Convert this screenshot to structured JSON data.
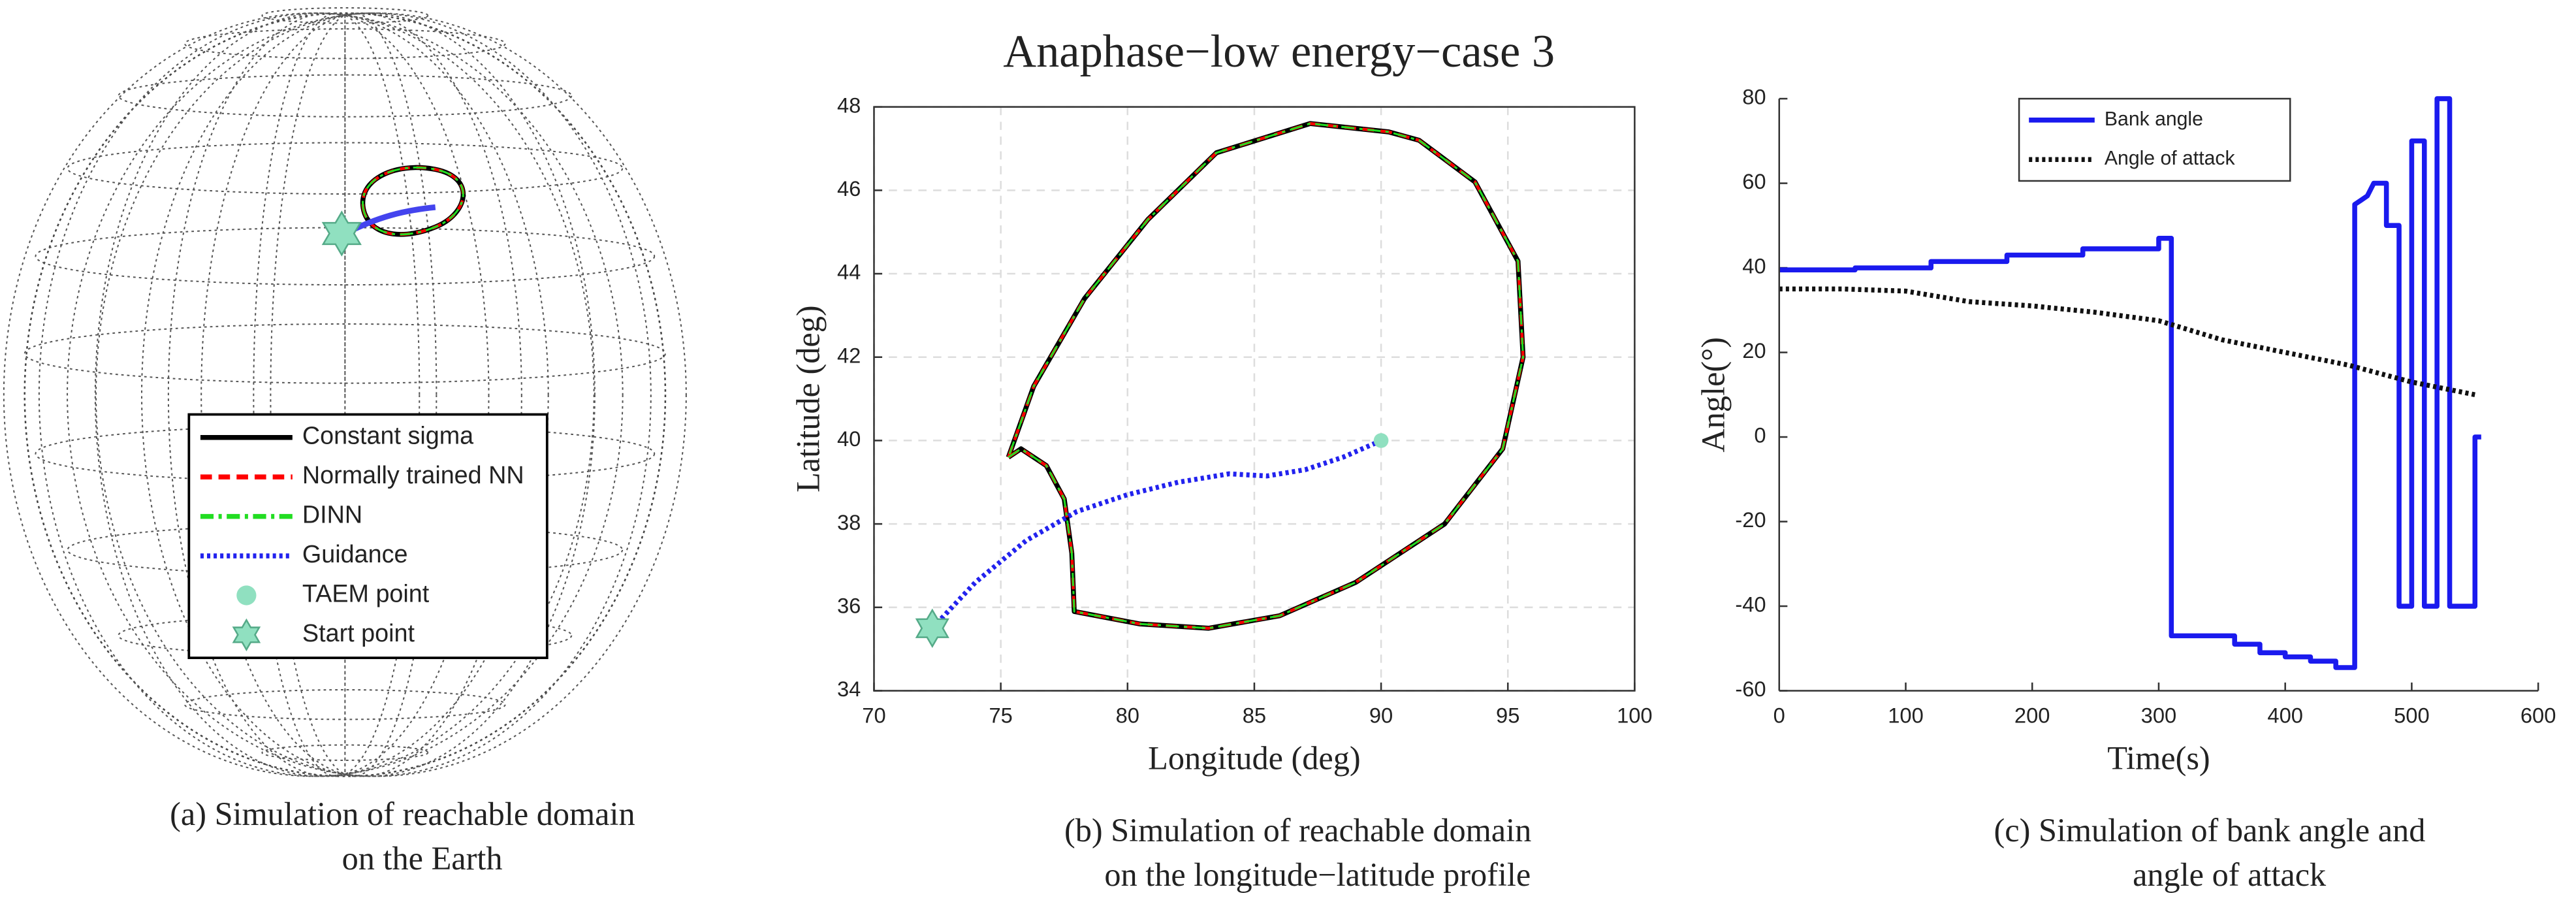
{
  "chart_data": [
    {
      "type": "globe",
      "caption": [
        "(a)   Simulation of reachable domain",
        "on the Earth"
      ],
      "series": [
        {
          "name": "Constant sigma",
          "color": "#000000",
          "style": "solid"
        },
        {
          "name": "Normally trained NN",
          "color": "#ff0000",
          "style": "dashed"
        },
        {
          "name": "DINN",
          "color": "#22dd22",
          "style": "dashdot"
        },
        {
          "name": "Guidance",
          "color": "#2222ee",
          "style": "dotted"
        },
        {
          "name": "TAEM point",
          "color": "#90e0c0",
          "marker": "circle"
        },
        {
          "name": "Start point",
          "color": "#90e0c0",
          "marker": "star"
        }
      ]
    },
    {
      "type": "line",
      "title": "Anaphase−low energy−case 3",
      "xlabel": "Longitude (deg)",
      "ylabel": "Latitude (deg)",
      "caption": [
        "(b)   Simulation of reachable domain",
        "on the longitude−latitude profile"
      ],
      "xlim": [
        70,
        100
      ],
      "xticks": [
        70,
        75,
        80,
        85,
        90,
        95,
        100
      ],
      "ylim": [
        34,
        48
      ],
      "yticks": [
        34,
        36,
        38,
        40,
        42,
        44,
        46,
        48
      ],
      "grid": true,
      "box": true,
      "series": [
        {
          "color": "#000000",
          "style": "solid",
          "width": 3,
          "x": [
            75.3,
            75.8,
            76.8,
            77.5,
            77.8,
            77.9,
            80.5,
            83.2,
            86,
            89,
            92.5,
            94.8,
            95.6,
            95.4,
            93.7,
            91.5,
            90.3,
            87.2,
            83.5,
            80.8,
            78.3,
            76.3,
            75.3
          ],
          "values": [
            39.6,
            39.8,
            39.4,
            38.6,
            37.3,
            35.9,
            35.6,
            35.5,
            35.8,
            36.6,
            38,
            39.8,
            42,
            44.3,
            46.2,
            47.2,
            47.4,
            47.6,
            46.9,
            45.3,
            43.4,
            41.3,
            39.6
          ]
        },
        {
          "color": "#ff0000",
          "style": "dashed",
          "width": 1.8,
          "x": [
            75.3,
            75.8,
            76.8,
            77.5,
            77.8,
            77.9,
            80.5,
            83.2,
            86,
            89,
            92.5,
            94.8,
            95.6,
            95.4,
            93.7,
            91.5,
            90.3,
            87.2,
            83.5,
            80.8,
            78.3,
            76.3,
            75.3
          ],
          "values": [
            39.6,
            39.8,
            39.4,
            38.6,
            37.3,
            35.9,
            35.6,
            35.5,
            35.8,
            36.6,
            38,
            39.8,
            42,
            44.3,
            46.2,
            47.2,
            47.4,
            47.6,
            46.9,
            45.3,
            43.4,
            41.3,
            39.6
          ]
        },
        {
          "color": "#22dd22",
          "style": "dashdot",
          "width": 1.2,
          "x": [
            75.3,
            75.8,
            76.8,
            77.5,
            77.8,
            77.9,
            80.5,
            83.2,
            86,
            89,
            92.5,
            94.8,
            95.6,
            95.4,
            93.7,
            91.5,
            90.3,
            87.2,
            83.5,
            80.8,
            78.3,
            76.3,
            75.3
          ],
          "values": [
            39.6,
            39.8,
            39.4,
            38.6,
            37.3,
            35.9,
            35.6,
            35.5,
            35.8,
            36.6,
            38,
            39.8,
            42,
            44.3,
            46.2,
            47.2,
            47.4,
            47.6,
            46.9,
            45.3,
            43.4,
            41.3,
            39.6
          ]
        },
        {
          "color": "#2222ee",
          "style": "dotted",
          "width": 3,
          "x": [
            72.3,
            74,
            76,
            78,
            80,
            82,
            84,
            85.5,
            87,
            88.5,
            90
          ],
          "values": [
            35.5,
            36.6,
            37.6,
            38.3,
            38.7,
            39,
            39.2,
            39.15,
            39.3,
            39.6,
            40
          ]
        },
        {
          "color": "#90e0c0",
          "marker": "circle",
          "x": [
            90
          ],
          "values": [
            40
          ]
        },
        {
          "color": "#90e0c0",
          "marker": "star",
          "x": [
            72.3
          ],
          "values": [
            35.5
          ]
        }
      ]
    },
    {
      "type": "line",
      "xlabel": "Time(s)",
      "ylabel": "Angle(°)",
      "caption": [
        "(c)   Simulation of bank angle and",
        "angle of attack"
      ],
      "xlim": [
        0,
        600
      ],
      "xticks": [
        0,
        100,
        200,
        300,
        400,
        500,
        600
      ],
      "ylim": [
        -60,
        80
      ],
      "yticks": [
        -60,
        -40,
        -20,
        0,
        20,
        40,
        60,
        80
      ],
      "grid": false,
      "box": false,
      "legend": "upper center",
      "series": [
        {
          "name": "Bank angle",
          "color": "#1a1aee",
          "style": "solid",
          "width": 3,
          "x": [
            0,
            60,
            60,
            120,
            120,
            180,
            180,
            240,
            240,
            300,
            300,
            310,
            310,
            360,
            360,
            380,
            380,
            400,
            400,
            420,
            420,
            440,
            440,
            455,
            455,
            460,
            465,
            470,
            480,
            480,
            490,
            490,
            500,
            500,
            510,
            510,
            520,
            520,
            530,
            530,
            550,
            550,
            555
          ],
          "values": [
            39.5,
            39.5,
            40,
            40,
            41.5,
            41.5,
            43,
            43,
            44.5,
            44.5,
            47,
            47,
            -47,
            -47,
            -49,
            -49,
            -51,
            -51,
            -52,
            -52,
            -53,
            -53,
            -54.5,
            -54.5,
            55,
            56,
            57,
            60,
            60,
            50,
            50,
            -40,
            -40,
            70,
            70,
            -40,
            -40,
            80,
            80,
            -40,
            -40,
            0,
            0
          ]
        },
        {
          "name": "Angle of attack",
          "color": "#111111",
          "style": "dotted",
          "width": 3,
          "x": [
            0,
            50,
            100,
            150,
            200,
            250,
            300,
            350,
            400,
            450,
            500,
            550
          ],
          "values": [
            35,
            35,
            34.5,
            32,
            31,
            29.5,
            27.5,
            23,
            20,
            17,
            13,
            10
          ]
        }
      ]
    }
  ]
}
